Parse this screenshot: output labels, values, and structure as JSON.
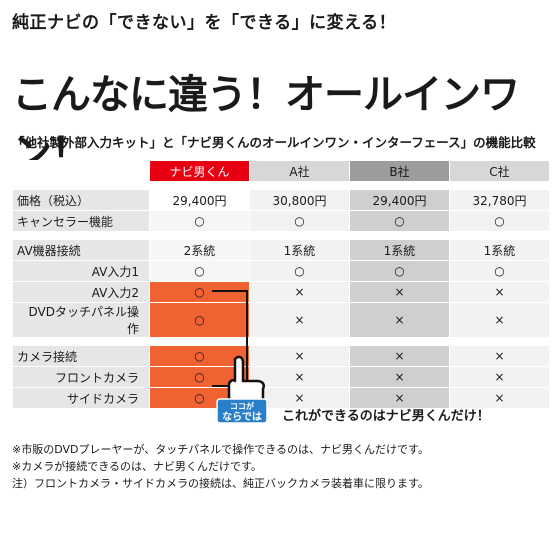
{
  "tagline": "純正ナビの「できない」を「できる」に変える！",
  "headline": "こんなに違う！オールインワン！",
  "subhead": "「他社製外部入力キット」と「ナビ男くんのオールインワン・インターフェース」の機能比較",
  "table": {
    "headers": [
      "ナビ男くん",
      "A社",
      "B社",
      "C社"
    ],
    "price_label": "価格（税込）",
    "prices": [
      "29,400円",
      "30,800円",
      "29,400円",
      "32,780円"
    ],
    "canceller_label": "キャンセラー機能",
    "canceller": [
      "○",
      "○",
      "○",
      "○"
    ],
    "av_label": "AV機器接続",
    "av": [
      "2系統",
      "1系統",
      "1系統",
      "1系統"
    ],
    "av1_label": "AV入力1",
    "av1": [
      "○",
      "○",
      "○",
      "○"
    ],
    "av2_label": "AV入力2",
    "av2": [
      "○",
      "×",
      "×",
      "×"
    ],
    "dvd_label": "DVDタッチパネル操作",
    "dvd": [
      "○",
      "×",
      "×",
      "×"
    ],
    "camera_label": "カメラ接続",
    "camera": [
      "○",
      "×",
      "×",
      "×"
    ],
    "front_label": "フロントカメラ",
    "front": [
      "○",
      "×",
      "×",
      "×"
    ],
    "side_label": "サイドカメラ",
    "side": [
      "○",
      "×",
      "×",
      "×"
    ]
  },
  "badge": {
    "top": "ココが",
    "bottom": "ならでは"
  },
  "callout": "これができるのはナビ男くんだけ！",
  "notes": [
    "※市販のDVDプレーヤーが、タッチパネルで操作できるのは、ナビ男くんだけです。",
    "※カメラが接続できるのは、ナビ男くんだけです。",
    "注）フロントカメラ・サイドカメラの接続は、純正バックカメラ装着車に限ります。"
  ],
  "colors": {
    "accent": "#e60012",
    "highlight": "#f06232"
  }
}
